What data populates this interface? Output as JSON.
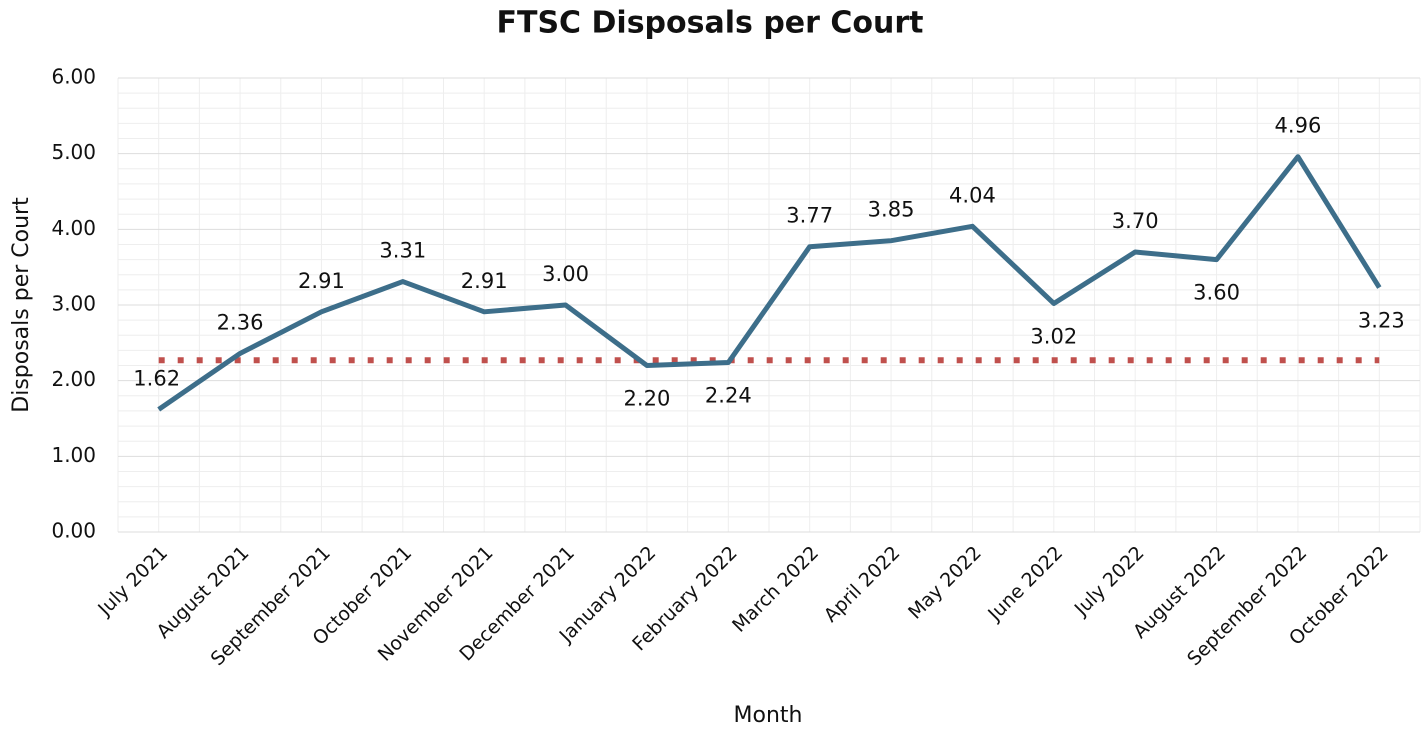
{
  "chart_data": {
    "type": "line",
    "title": "FTSC Disposals per Court",
    "x_label": "Month",
    "y_label": "Disposals per Court",
    "categories": [
      "July 2021",
      "August 2021",
      "September 2021",
      "October 2021",
      "November 2021",
      "December 2021",
      "January 2022",
      "February 2022",
      "March 2022",
      "April 2022",
      "May 2022",
      "June 2022",
      "July 2022",
      "August 2022",
      "September 2022",
      "October 2022"
    ],
    "series": [
      {
        "color": "#3d6e8a",
        "values": [
          1.62,
          2.36,
          2.91,
          3.31,
          2.91,
          3.0,
          2.2,
          2.24,
          3.77,
          3.85,
          4.04,
          3.02,
          3.7,
          3.6,
          4.96,
          3.23
        ],
        "value_labels": [
          "1.62",
          "2.36",
          "2.91",
          "3.31",
          "2.91",
          "3.00",
          "2.20",
          "2.24",
          "3.77",
          "3.85",
          "4.04",
          "3.02",
          "3.70",
          "3.60",
          "4.96",
          "3.23"
        ]
      }
    ],
    "reference_line": {
      "value": 2.27,
      "color": "#c0504d",
      "style": "dotted"
    },
    "ylim": [
      0,
      6
    ],
    "yticks": [
      {
        "value": 0,
        "label": "0.00"
      },
      {
        "value": 1,
        "label": "1.00"
      },
      {
        "value": 2,
        "label": "2.00"
      },
      {
        "value": 3,
        "label": "3.00"
      },
      {
        "value": 4,
        "label": "4.00"
      },
      {
        "value": 5,
        "label": "5.00"
      },
      {
        "value": 6,
        "label": "6.00"
      }
    ],
    "grid": true,
    "minor_grid_divisions": 5
  }
}
